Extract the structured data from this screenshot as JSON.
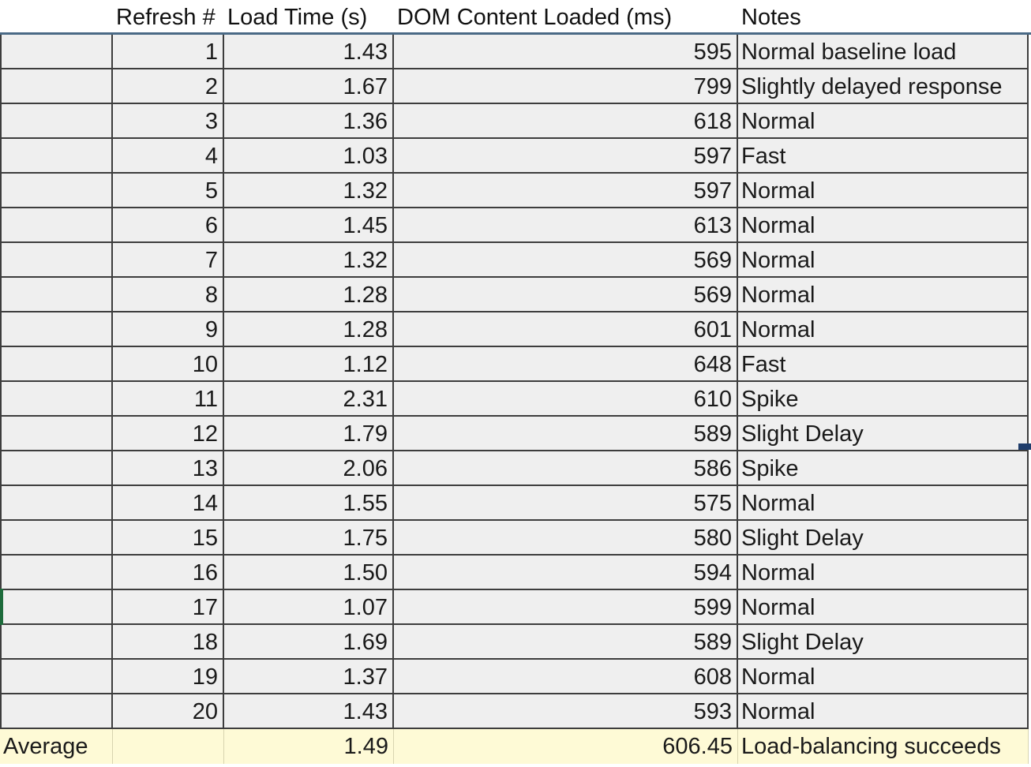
{
  "sheet": {
    "columns": [
      "",
      "Refresh #",
      "Load Time (s)",
      "DOM Content Loaded (ms)",
      "Notes"
    ],
    "rows": [
      [
        "",
        "1",
        "1.43",
        "595",
        "Normal baseline load"
      ],
      [
        "",
        "2",
        "1.67",
        "799",
        "Slightly delayed response"
      ],
      [
        "",
        "3",
        "1.36",
        "618",
        "Normal"
      ],
      [
        "",
        "4",
        "1.03",
        "597",
        "Fast"
      ],
      [
        "",
        "5",
        "1.32",
        "597",
        "Normal"
      ],
      [
        "",
        "6",
        "1.45",
        "613",
        "Normal"
      ],
      [
        "",
        "7",
        "1.32",
        "569",
        "Normal"
      ],
      [
        "",
        "8",
        "1.28",
        "569",
        "Normal"
      ],
      [
        "",
        "9",
        "1.28",
        "601",
        "Normal"
      ],
      [
        "",
        "10",
        "1.12",
        "648",
        "Fast"
      ],
      [
        "",
        "11",
        "2.31",
        "610",
        "Spike"
      ],
      [
        "",
        "12",
        "1.79",
        "589",
        "Slight Delay"
      ],
      [
        "",
        "13",
        "2.06",
        "586",
        "Spike"
      ],
      [
        "",
        "14",
        "1.55",
        "575",
        "Normal"
      ],
      [
        "",
        "15",
        "1.75",
        "580",
        "Slight Delay"
      ],
      [
        "",
        "16",
        "1.50",
        "594",
        "Normal"
      ],
      [
        "",
        "17",
        "1.07",
        "599",
        "Normal"
      ],
      [
        "",
        "18",
        "1.69",
        "589",
        "Slight Delay"
      ],
      [
        "",
        "19",
        "1.37",
        "608",
        "Normal"
      ],
      [
        "",
        "20",
        "1.43",
        "593",
        "Normal"
      ]
    ],
    "average_row": [
      "Average",
      "",
      "1.49",
      "606.45",
      "Load-balancing succeeds"
    ]
  },
  "colors": {
    "cell_fill": "#efefef",
    "average_fill": "#fefad6",
    "grid_line": "#3d3d3d",
    "header_rule": "#4a6a86",
    "selection_marker": "#1d6b3b",
    "fill_handle": "#1f3d6b"
  }
}
